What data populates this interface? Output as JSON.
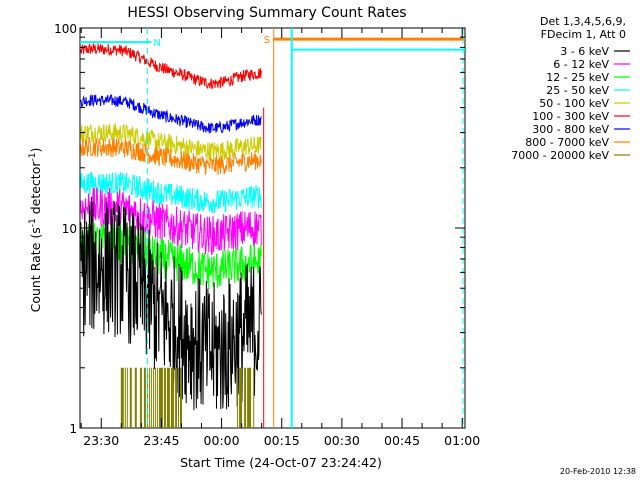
{
  "chart_data": {
    "type": "line",
    "title": "HESSI Observing Summary Count Rates",
    "xlabel": "Start Time (24-Oct-07 23:24:42)",
    "ylabel_main": "Count Rate (s",
    "ylabel_sup": "-1",
    "ylabel_tail": " detector",
    "ylabel_end": ")",
    "yscale": "log",
    "ylim": [
      1,
      100
    ],
    "y_ticks": [
      {
        "value": 1,
        "label": "1"
      },
      {
        "value": 10,
        "label": "10"
      },
      {
        "value": 100,
        "label": "100"
      }
    ],
    "x_ticks": [
      "23:30",
      "23:45",
      "00:00",
      "00:15",
      "00:30",
      "00:45",
      "01:00"
    ],
    "xlim_minutes": [
      -5.3,
      90.7
    ],
    "legend": {
      "placement": "outside-right",
      "header": [
        "Det 1,3,4,5,6,9,",
        "FDecim 1, Att 0"
      ]
    },
    "series": [
      {
        "name": "3 - 6 keV",
        "color": "#000000",
        "level": 3.3,
        "hump": 0.55,
        "noise": 0.35
      },
      {
        "name": "6 - 12 keV",
        "color": "#ff00ff",
        "level": 10.2,
        "hump": 0.18,
        "noise": 0.1
      },
      {
        "name": "12 - 25 keV",
        "color": "#00ff00",
        "level": 6.8,
        "hump": 0.18,
        "noise": 0.1
      },
      {
        "name": "25 - 50 keV",
        "color": "#00ffff",
        "level": 14.5,
        "hump": 0.12,
        "noise": 0.06
      },
      {
        "name": "50 - 100 keV",
        "color": "#cccc00",
        "level": 26,
        "hump": 0.12,
        "noise": 0.05
      },
      {
        "name": "100 - 300 keV",
        "color": "#ff0000",
        "level": 60,
        "hump": 0.22,
        "noise": 0.03
      },
      {
        "name": "300 - 800 keV",
        "color": "#0000ff",
        "level": 35,
        "hump": 0.18,
        "noise": 0.03
      },
      {
        "name": "800 - 7000 keV",
        "color": "#ff8000",
        "level": 22,
        "hump": 0.12,
        "noise": 0.05
      },
      {
        "name": "7000 - 20000 keV",
        "color": "#808000",
        "level": 1,
        "hump": 0,
        "noise": 0
      }
    ],
    "annotations": [
      {
        "label": "N",
        "color": "#00ffff"
      },
      {
        "label": "S",
        "color": "#ff8000"
      }
    ],
    "footer": "20-Feb-2010 12:38"
  }
}
